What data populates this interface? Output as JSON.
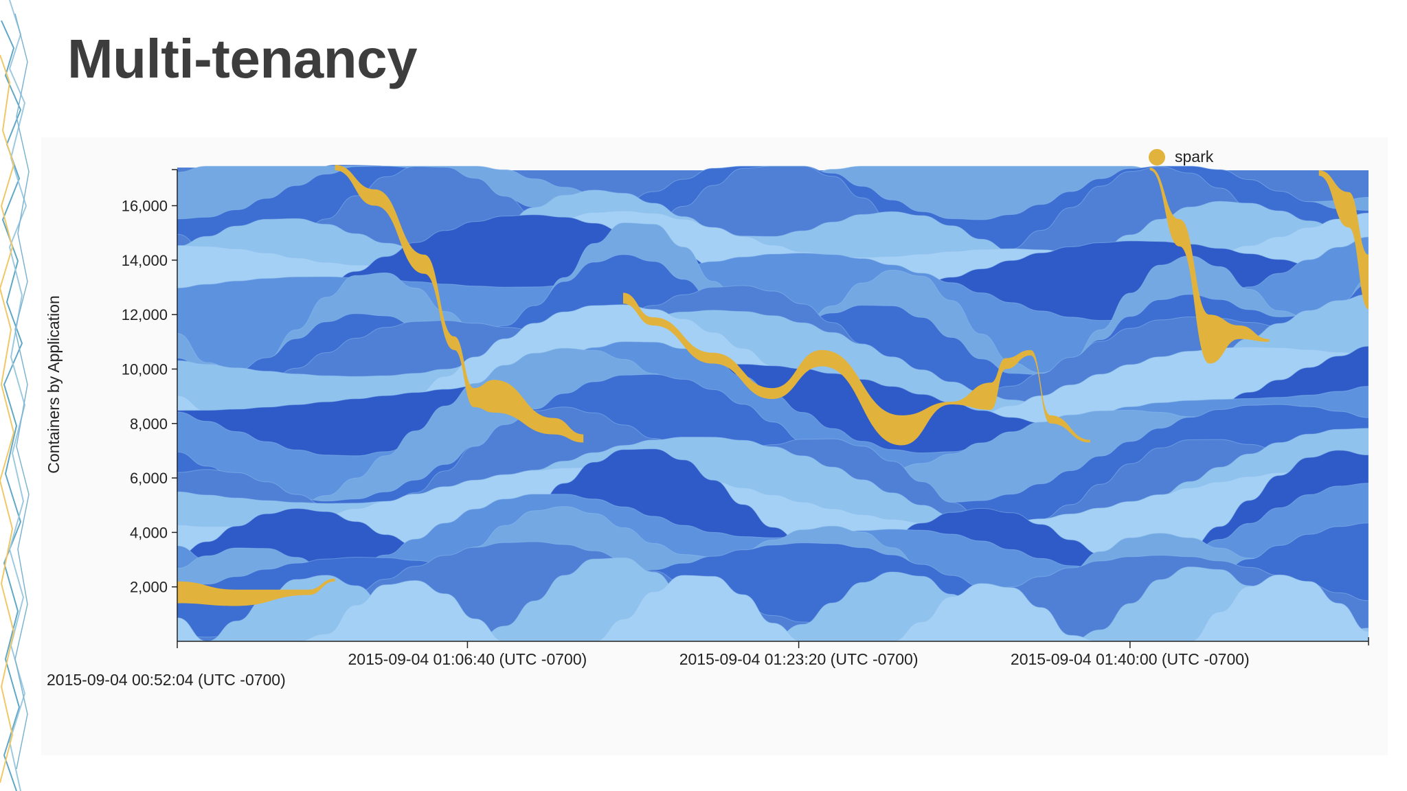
{
  "slide": {
    "title": "Multi-tenancy"
  },
  "chart_data": {
    "type": "area",
    "ylabel": "Containers  by Application",
    "ylim": [
      0,
      17300
    ],
    "yticks": [
      2000,
      4000,
      6000,
      8000,
      10000,
      12000,
      14000,
      16000
    ],
    "ytick_labels": [
      "2,000",
      "4,000",
      "6,000",
      "8,000",
      "10,000",
      "12,000",
      "14,000",
      "16,000"
    ],
    "xlim": [
      "2015-09-04 00:52:04",
      "2015-09-04 01:52:00"
    ],
    "xticks": [
      "2015-09-04 00:52:04",
      "2015-09-04 01:06:40",
      "2015-09-04 01:23:20",
      "2015-09-04 01:40:00"
    ],
    "xtick_labels": [
      "2015-09-04 00:52:04 (UTC -0700)",
      "2015-09-04 01:06:40 (UTC -0700)",
      "2015-09-04 01:23:20 (UTC -0700)",
      "2015-09-04 01:40:00 (UTC -0700)"
    ],
    "legend": {
      "position": "top-right",
      "entries": [
        {
          "label": "spark",
          "color": "#e2b33c"
        }
      ]
    },
    "x": [
      "00:52:04",
      "00:58:40",
      "01:00:00",
      "01:08:00",
      "01:12:00",
      "01:14:30",
      "01:18:00",
      "01:23:20",
      "01:25:00",
      "01:29:00",
      "01:32:30",
      "01:35:00",
      "01:40:00",
      "01:41:20",
      "01:45:00",
      "01:46:00",
      "01:50:00",
      "01:52:00"
    ],
    "total": [
      17400,
      17300,
      17500,
      17300,
      17300,
      17300,
      17300,
      17300,
      17300,
      17300,
      17300,
      17300,
      17300,
      17300,
      17300,
      17300,
      17300,
      17300
    ],
    "series": [
      {
        "name": "spark",
        "color": "#e2b33c",
        "segments": [
          {
            "x": [
              "00:52:04",
              "00:55:00",
              "00:58:40",
              "01:00:00"
            ],
            "bottom": [
              1400,
              1300,
              1700,
              2200
            ],
            "top": [
              2200,
              1900,
              1900,
              2300
            ]
          },
          {
            "x": [
              "01:00:00",
              "01:02:00",
              "01:04:30",
              "01:06:00",
              "01:07:00",
              "01:08:00",
              "01:11:00",
              "01:12:30"
            ],
            "bottom": [
              17300,
              16000,
              13500,
              10700,
              8600,
              8400,
              7600,
              7300
            ],
            "top": [
              17500,
              16600,
              14200,
              11200,
              9300,
              9600,
              8200,
              7600
            ]
          },
          {
            "x": [
              "01:14:30",
              "01:16:00",
              "01:19:00",
              "01:22:00",
              "01:24:30",
              "01:28:30",
              "01:31:00",
              "01:33:00",
              "01:33:45",
              "01:35:00"
            ],
            "bottom": [
              12400,
              11600,
              10200,
              8900,
              10100,
              7200,
              8700,
              8500,
              10000,
              10500
            ],
            "top": [
              12800,
              11900,
              10600,
              9300,
              10700,
              8300,
              8800,
              9500,
              10400,
              10700
            ]
          },
          {
            "x": [
              "01:35:00",
              "01:36:00",
              "01:38:00"
            ],
            "bottom": [
              10500,
              8000,
              7300
            ],
            "top": [
              10700,
              8300,
              7400
            ]
          },
          {
            "x": [
              "01:41:00",
              "01:42:30",
              "01:44:00",
              "01:45:30",
              "01:47:00"
            ],
            "bottom": [
              17300,
              14500,
              10200,
              11100,
              11000
            ],
            "top": [
              17400,
              15500,
              12000,
              11600,
              11100
            ]
          },
          {
            "x": [
              "01:49:30",
              "01:51:00",
              "01:52:00"
            ],
            "bottom": [
              17100,
              15200,
              12200
            ],
            "top": [
              17300,
              16500,
              14200
            ]
          }
        ]
      }
    ],
    "colors": [
      "#4f80d6",
      "#73a8e3",
      "#2f5bc8",
      "#90c2ee",
      "#3d6ed2",
      "#5d92de",
      "#a3d0f4"
    ]
  }
}
